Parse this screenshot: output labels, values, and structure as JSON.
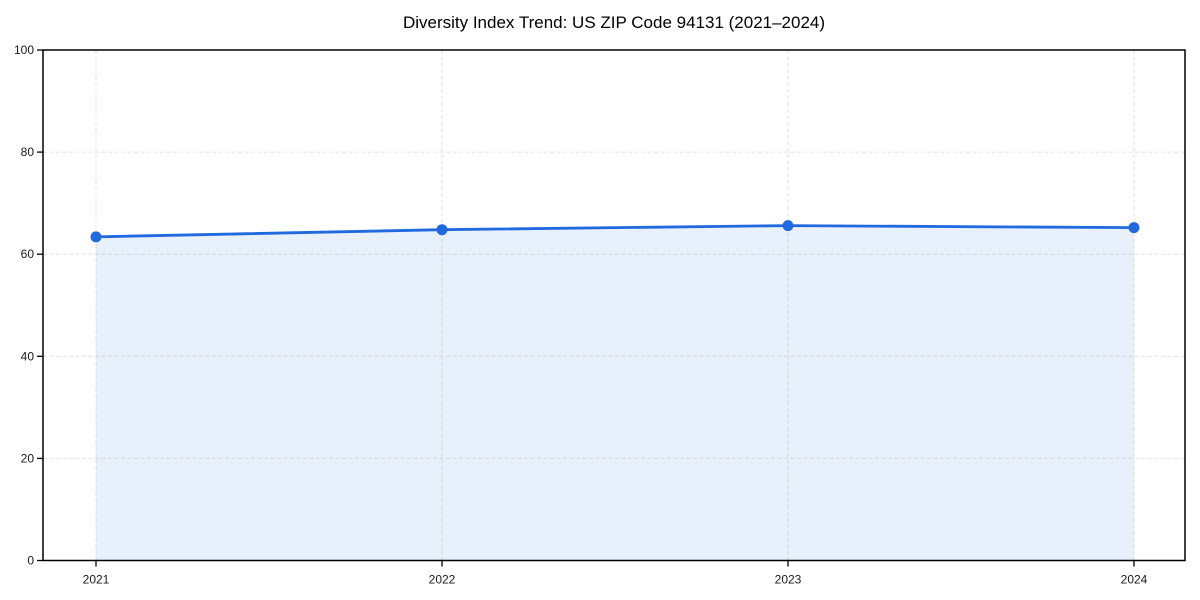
{
  "figure": {
    "title": "Diversity Index Trend: US ZIP Code 94131 (2021–2024)"
  },
  "chart_data": {
    "type": "line",
    "title": "Diversity Index Trend: US ZIP Code 94131 (2021–2024)",
    "x": [
      "2021",
      "2022",
      "2023",
      "2024"
    ],
    "series": [
      {
        "name": "Diversity Index",
        "values": [
          63.4,
          64.8,
          65.6,
          65.2
        ]
      }
    ],
    "area_fill": true,
    "markers": true,
    "xlabel": "",
    "ylabel": "",
    "ylim": [
      0,
      100
    ],
    "yticks": [
      0,
      20,
      40,
      60,
      80,
      100
    ],
    "xtick_labels": [
      "2021",
      "2022",
      "2023",
      "2024"
    ],
    "grid": "dashed",
    "legend_position": "none",
    "colors": {
      "line": "#2169de",
      "marker": "#2169de",
      "area_fill": "rgba(33,105,222,0.10)",
      "grid": "#e1e1e1",
      "axis": "#000000",
      "tick_label": "#1a1a1a",
      "title": "#000000",
      "background": "#ffffff"
    }
  }
}
